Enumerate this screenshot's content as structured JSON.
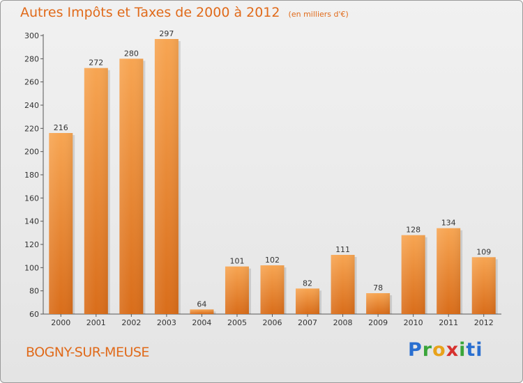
{
  "header": {
    "title": "Autres Impôts et Taxes de 2000 à 2012",
    "unit": "(en milliers d'€)"
  },
  "footer": {
    "town": "BOGNY-SUR-MEUSE",
    "brand": "Proxiti"
  },
  "colors": {
    "accent": "#e06a1a",
    "bar_top": "#f7a552",
    "bar_bottom": "#d96d1a"
  },
  "chart_data": {
    "type": "bar",
    "title": "Autres Impôts et Taxes de 2000 à 2012",
    "subtitle": "(en milliers d'€)",
    "xlabel": "",
    "ylabel": "",
    "categories": [
      "2000",
      "2001",
      "2002",
      "2003",
      "2004",
      "2005",
      "2006",
      "2007",
      "2008",
      "2009",
      "2010",
      "2011",
      "2012"
    ],
    "values": [
      216,
      272,
      280,
      297,
      64,
      101,
      102,
      82,
      111,
      78,
      128,
      134,
      109
    ],
    "ylim": [
      60,
      300
    ],
    "yticks": [
      60,
      80,
      100,
      120,
      140,
      160,
      180,
      200,
      220,
      240,
      260,
      280,
      300
    ],
    "grid": false,
    "legend": "none"
  }
}
